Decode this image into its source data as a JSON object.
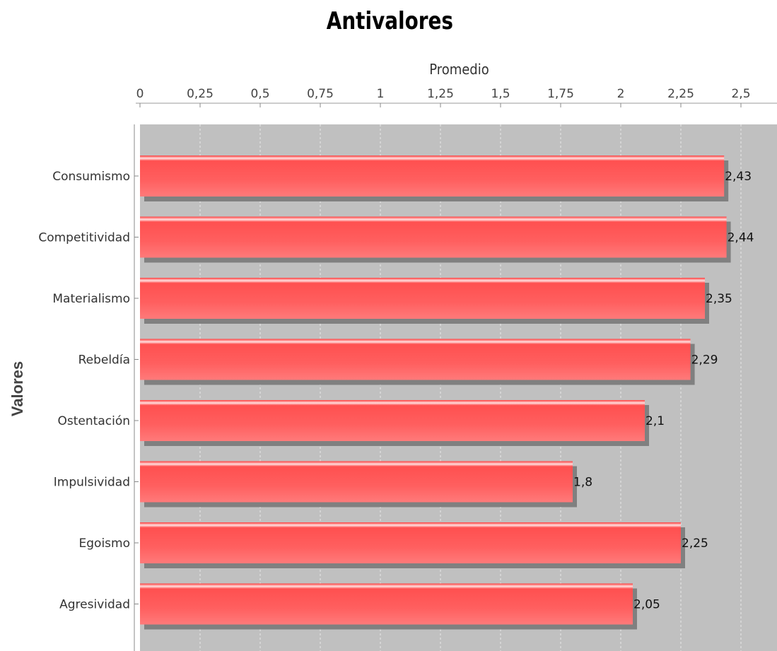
{
  "chart_data": {
    "type": "bar",
    "orientation": "horizontal",
    "title": "Antivalores",
    "xlabel": "Promedio",
    "ylabel": "Valores",
    "categories": [
      "Consumismo",
      "Competitividad",
      "Materialismo",
      "Rebeldía",
      "Ostentación",
      "Impulsividad",
      "Egoismo",
      "Agresividad"
    ],
    "values": [
      2.43,
      2.44,
      2.35,
      2.29,
      2.1,
      1.8,
      2.25,
      2.05
    ],
    "value_labels": [
      "2,43",
      "2,44",
      "2,35",
      "2,29",
      "2,1",
      "1,8",
      "2,25",
      "2,05"
    ],
    "xticks": [
      0,
      0.25,
      0.5,
      0.75,
      1,
      1.25,
      1.5,
      1.75,
      2,
      2.25,
      2.5
    ],
    "xtick_labels": [
      "0",
      "0,25",
      "0,5",
      "0,75",
      "1",
      "1,25",
      "1,5",
      "1,75",
      "2",
      "2,25",
      "2,5"
    ],
    "xlim": [
      0,
      2.65
    ],
    "x_axis_position": "top",
    "grid": true,
    "colors": {
      "bar": "#ff5b5b",
      "bar_highlight": "#ffd6d6",
      "bar_shadow": "#808080",
      "plot_background": "#c0c0c0",
      "gridline": "#e8e8e8"
    }
  }
}
